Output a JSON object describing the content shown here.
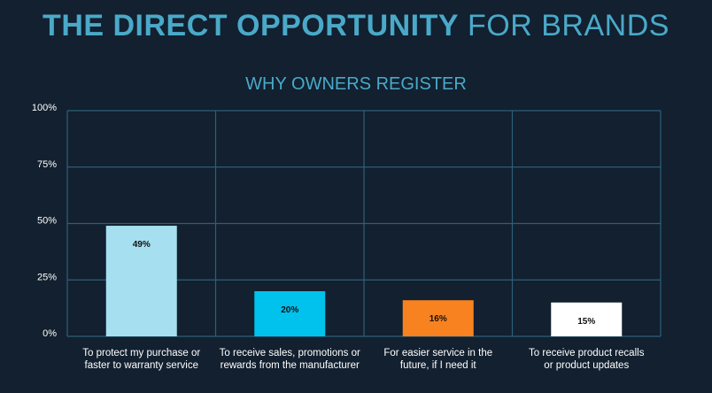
{
  "header": {
    "title_bold": "THE DIRECT OPPORTUNITY",
    "title_rest": "FOR BRANDS"
  },
  "chart_data": {
    "type": "bar",
    "title": "WHY OWNERS REGISTER",
    "categories": [
      [
        "To protect my purchase or",
        "faster to warranty service"
      ],
      [
        "To receive sales, promotions or",
        "rewards from the manufacturer"
      ],
      [
        "For easier service in the",
        "future, if I need it"
      ],
      [
        "To receive product recalls",
        "or product updates"
      ]
    ],
    "values": [
      49,
      20,
      16,
      15
    ],
    "data_labels": [
      "49%",
      "20%",
      "16%",
      "15%"
    ],
    "bar_colors": [
      "#a6e0f0",
      "#00c2ec",
      "#f98220",
      "#ffffff"
    ],
    "yticks": [
      "0%",
      "25%",
      "50%",
      "75%",
      "100%"
    ],
    "ylim": [
      0,
      100
    ],
    "grid": true,
    "gridline_color": "#2d5f7a",
    "xlabel": "",
    "ylabel": ""
  }
}
